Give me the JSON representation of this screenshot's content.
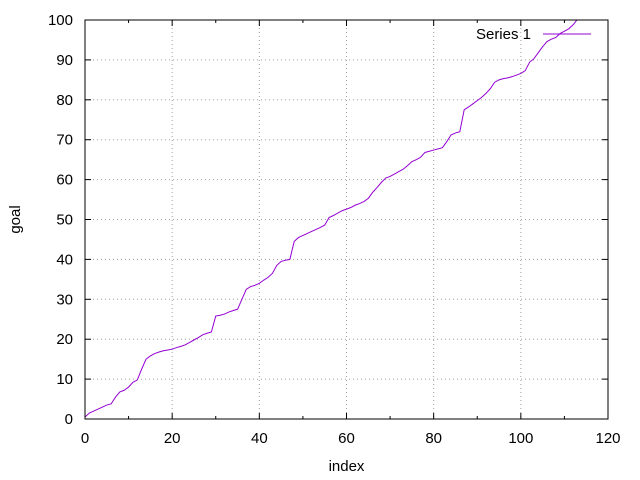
{
  "chart_data": {
    "type": "line",
    "xlabel": "index",
    "ylabel": "goal",
    "xlim": [
      0,
      120
    ],
    "ylim": [
      0,
      100
    ],
    "xticks": [
      0,
      20,
      40,
      60,
      80,
      100,
      120
    ],
    "yticks": [
      0,
      10,
      20,
      30,
      40,
      50,
      60,
      70,
      80,
      90,
      100
    ],
    "grid": true,
    "legend_position": "top-right",
    "series": [
      {
        "name": "Series 1",
        "color": "#9400d3",
        "x": [
          0,
          1,
          2,
          3,
          4,
          5,
          6,
          7,
          8,
          9,
          10,
          11,
          12,
          13,
          14,
          15,
          16,
          17,
          18,
          19,
          20,
          21,
          22,
          23,
          24,
          25,
          26,
          27,
          28,
          29,
          30,
          31,
          32,
          33,
          34,
          35,
          36,
          37,
          38,
          39,
          40,
          41,
          42,
          43,
          44,
          45,
          46,
          47,
          48,
          49,
          50,
          51,
          52,
          53,
          54,
          55,
          56,
          57,
          58,
          59,
          60,
          61,
          62,
          63,
          64,
          65,
          66,
          67,
          68,
          69,
          70,
          71,
          72,
          73,
          74,
          75,
          76,
          77,
          78,
          79,
          80,
          81,
          82,
          83,
          84,
          85,
          86,
          87,
          88,
          89,
          90,
          91,
          92,
          93,
          94,
          95,
          96,
          97,
          98,
          99,
          100,
          101,
          102,
          103,
          104,
          105,
          106,
          107,
          108,
          109,
          110,
          111,
          112,
          113
        ],
        "y": [
          0.5,
          1.5,
          2.0,
          2.5,
          3.0,
          3.5,
          3.8,
          5.5,
          6.8,
          7.2,
          8.0,
          9.2,
          9.8,
          12.5,
          15.0,
          15.8,
          16.4,
          16.8,
          17.1,
          17.3,
          17.5,
          17.9,
          18.2,
          18.6,
          19.2,
          19.8,
          20.4,
          21.1,
          21.5,
          21.8,
          25.8,
          26.0,
          26.3,
          26.8,
          27.2,
          27.5,
          30.0,
          32.5,
          33.2,
          33.5,
          34.0,
          34.8,
          35.5,
          36.5,
          38.5,
          39.5,
          39.8,
          40.0,
          44.5,
          45.5,
          46.0,
          46.5,
          47.0,
          47.5,
          48.0,
          48.6,
          50.5,
          51.0,
          51.6,
          52.2,
          52.6,
          53.0,
          53.6,
          54.0,
          54.5,
          55.3,
          56.8,
          58.0,
          59.3,
          60.4,
          60.8,
          61.4,
          62.0,
          62.6,
          63.5,
          64.5,
          65.0,
          65.6,
          66.8,
          67.1,
          67.4,
          67.7,
          68.0,
          69.5,
          71.2,
          71.7,
          72.0,
          77.5,
          78.2,
          79.0,
          79.8,
          80.6,
          81.6,
          82.8,
          84.4,
          85.0,
          85.3,
          85.5,
          85.8,
          86.2,
          86.6,
          87.3,
          89.4,
          90.3,
          91.8,
          93.3,
          94.6,
          95.2,
          95.6,
          96.6,
          97.2,
          97.8,
          98.8,
          100.2
        ]
      }
    ]
  }
}
